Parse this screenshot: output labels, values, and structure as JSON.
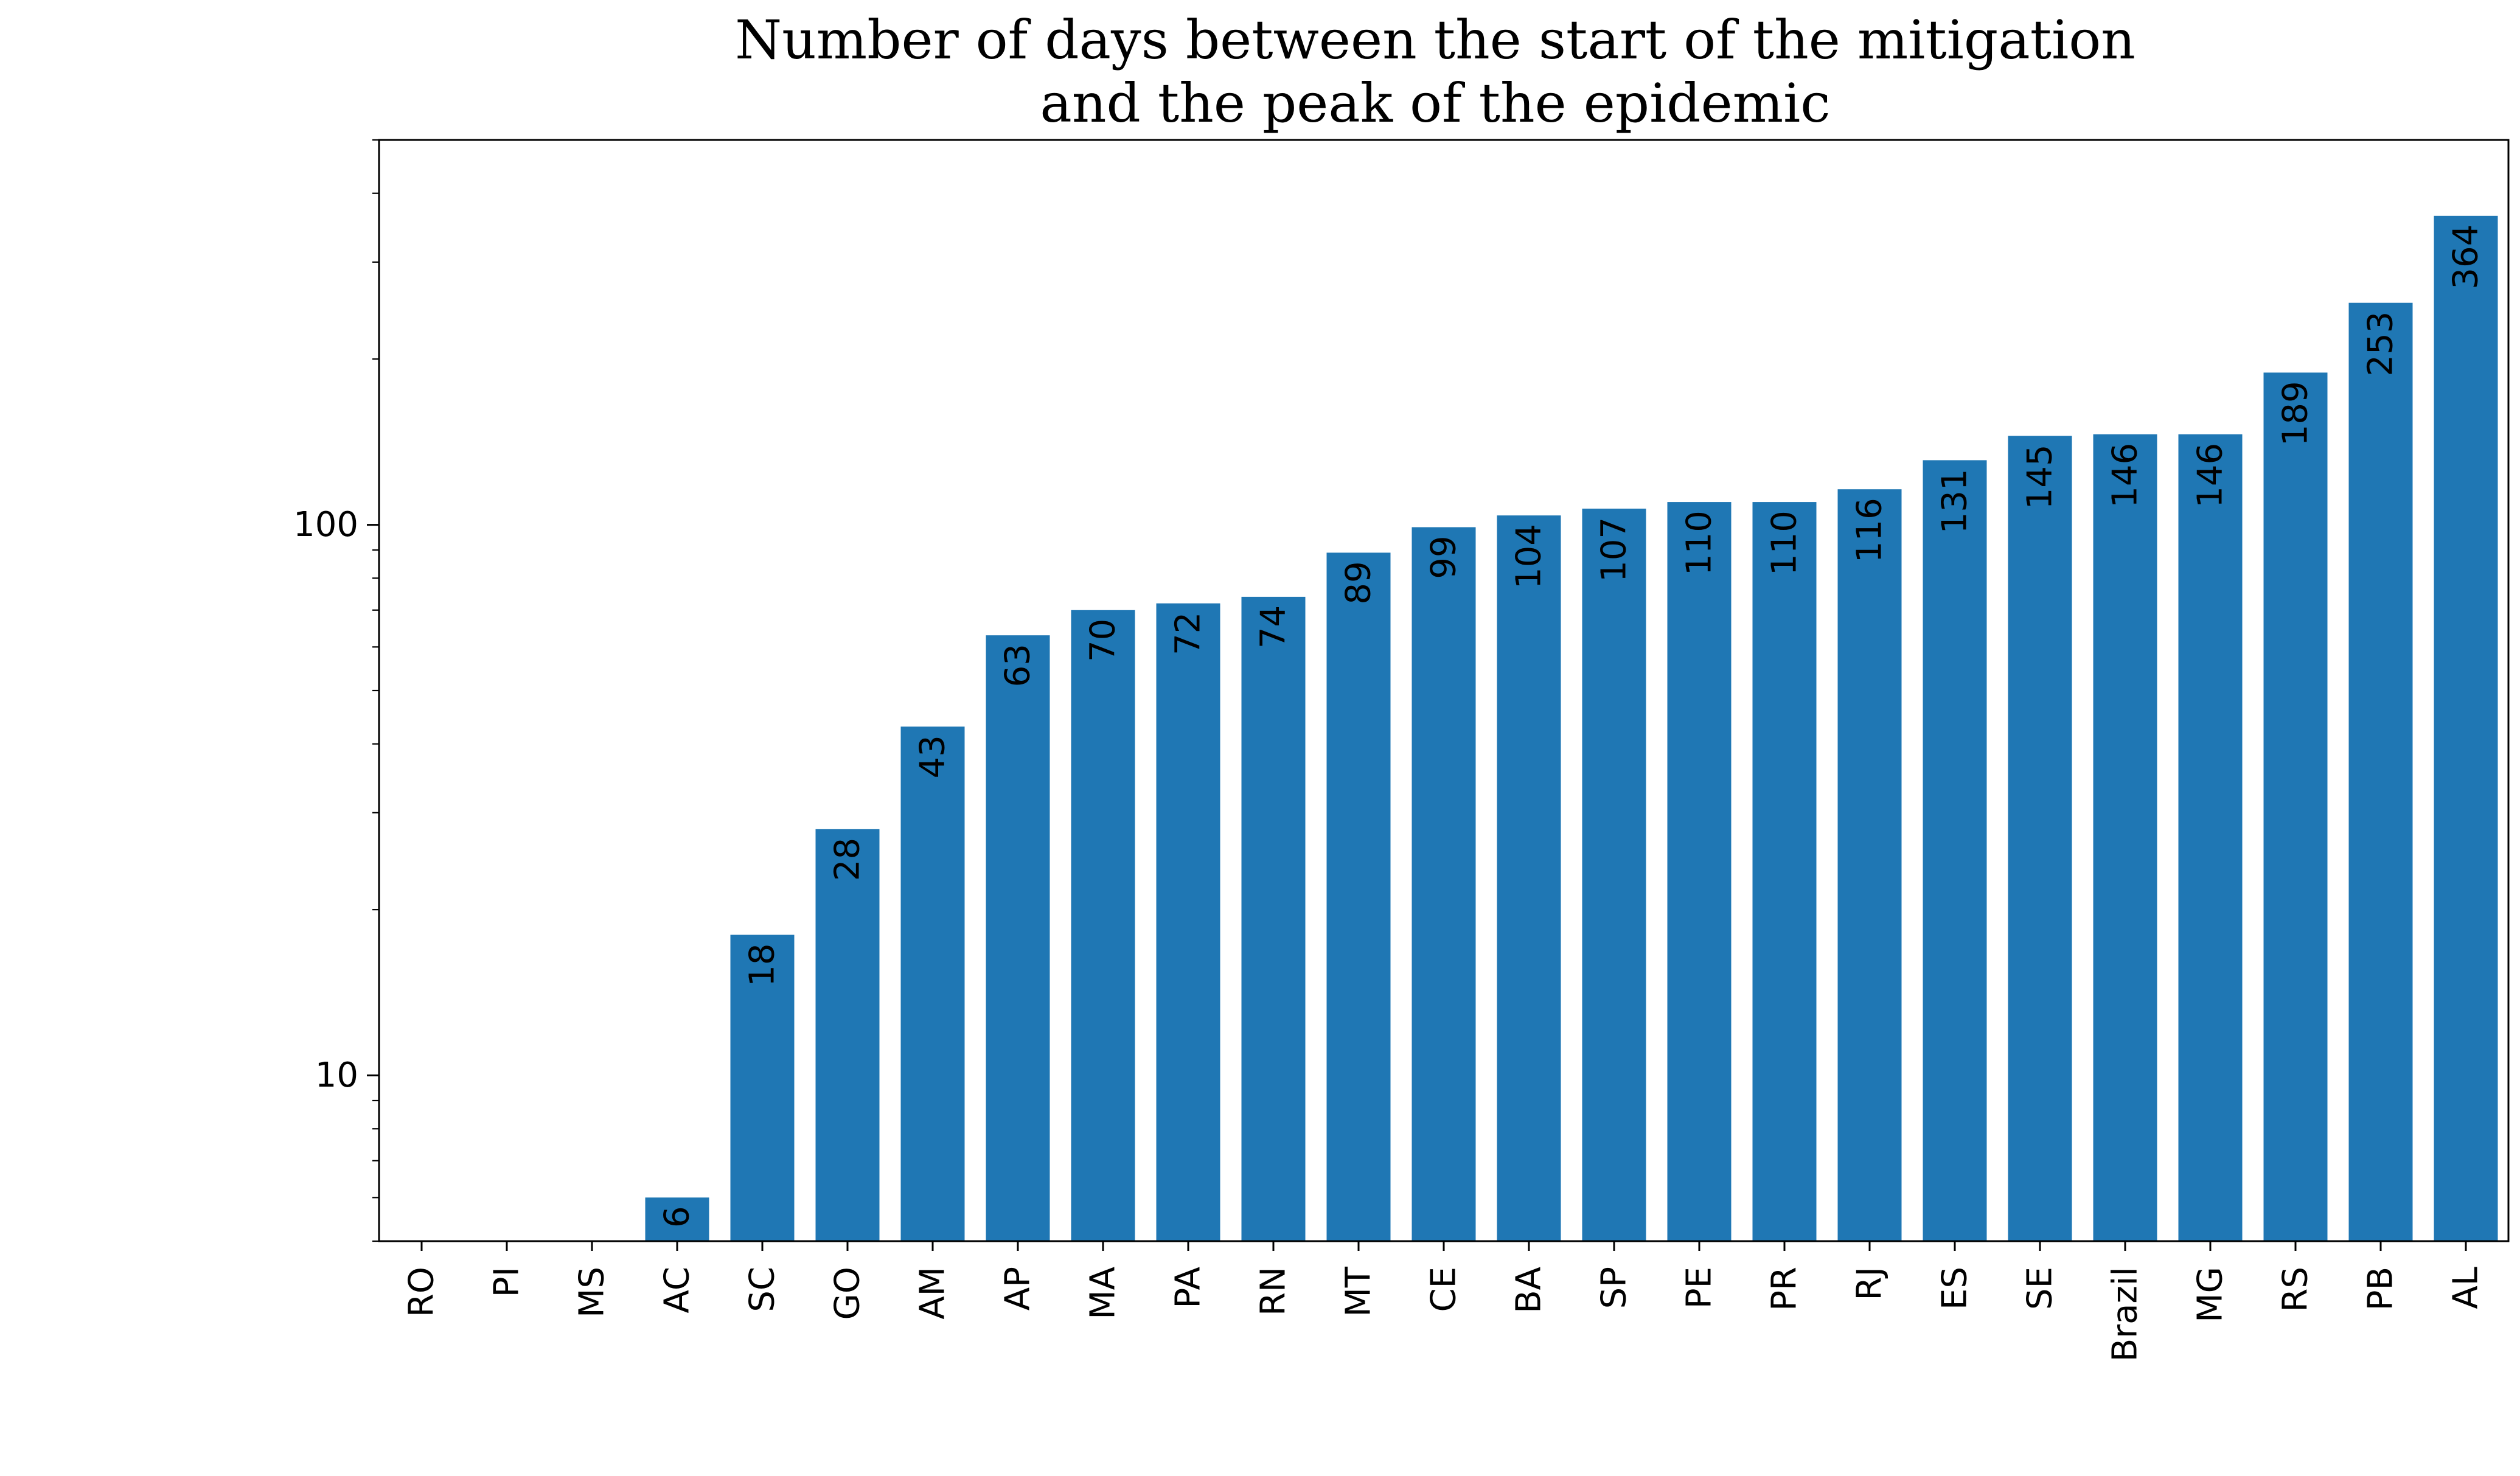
{
  "chart_data": {
    "type": "bar",
    "title_lines": [
      "Number of days between the start of the mitigation",
      "and the peak of the epidemic"
    ],
    "xlabel": "",
    "ylabel": "",
    "yscale": "log",
    "ylim": [
      5,
      500
    ],
    "yticks": [
      {
        "value": 10,
        "label": "10"
      },
      {
        "value": 100,
        "label": "100"
      }
    ],
    "categories": [
      "RO",
      "PI",
      "MS",
      "AC",
      "SC",
      "GO",
      "AM",
      "AP",
      "MA",
      "PA",
      "RN",
      "MT",
      "CE",
      "BA",
      "SP",
      "PE",
      "PR",
      "RJ",
      "ES",
      "SE",
      "Brazil",
      "MG",
      "RS",
      "PB",
      "AL"
    ],
    "values": [
      null,
      null,
      null,
      6,
      18,
      28,
      43,
      63,
      70,
      72,
      74,
      89,
      99,
      104,
      107,
      110,
      110,
      116,
      131,
      145,
      146,
      146,
      189,
      253,
      364
    ],
    "labels": [
      "",
      "",
      "",
      "6",
      "18",
      "28",
      "43",
      "63",
      "70",
      "72",
      "74",
      "89",
      "99",
      "104",
      "107",
      "110",
      "110",
      "116",
      "131",
      "145",
      "146",
      "146",
      "189",
      "253",
      "364"
    ],
    "bar_color": "#1f77b4",
    "grid": false,
    "legend": "none"
  }
}
